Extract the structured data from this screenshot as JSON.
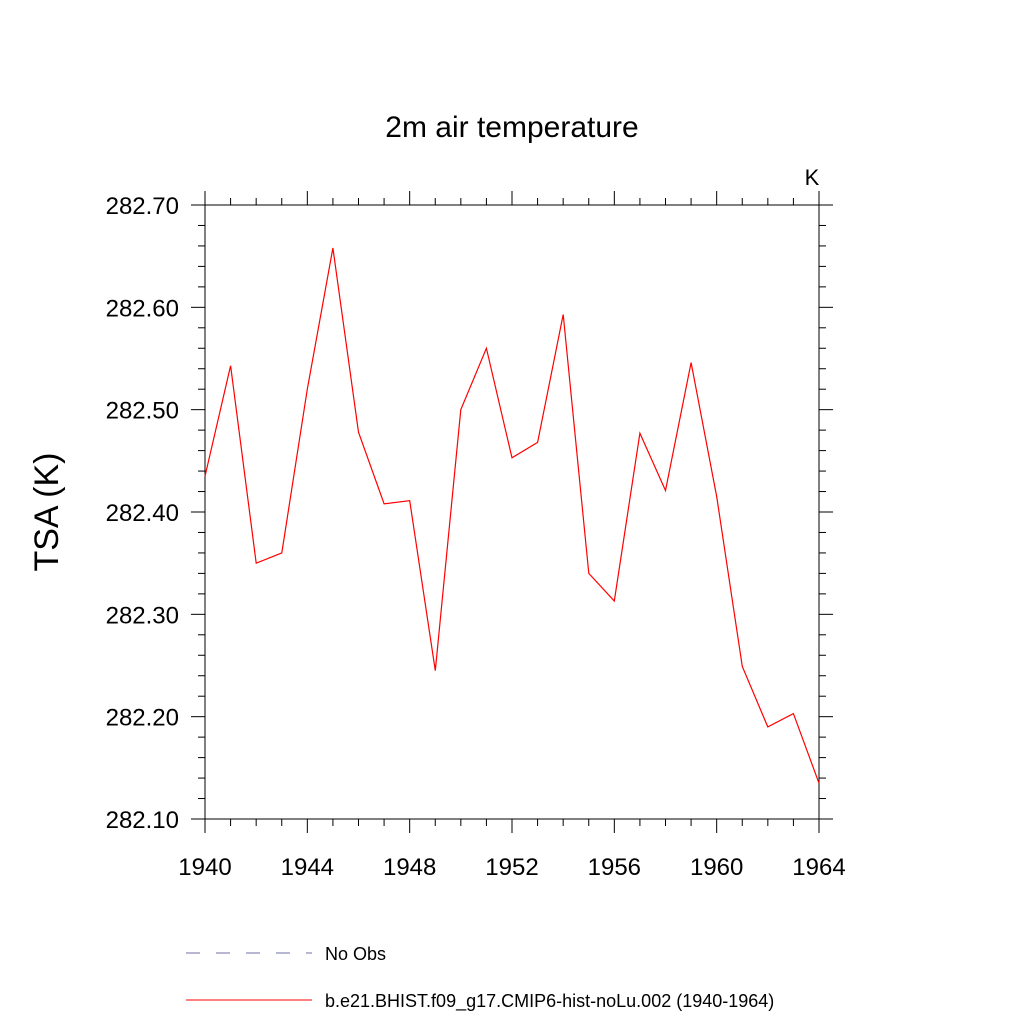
{
  "chart_data": {
    "type": "line",
    "title": "2m air temperature",
    "units_label": "K",
    "xlabel": "",
    "ylabel": "TSA  (K)",
    "xlim": [
      1940,
      1964
    ],
    "ylim": [
      282.1,
      282.7
    ],
    "x_ticks": [
      1940,
      1944,
      1948,
      1952,
      1956,
      1960,
      1964
    ],
    "x_tick_labels": [
      "1940",
      "1944",
      "1948",
      "1952",
      "1956",
      "1960",
      "1964"
    ],
    "y_ticks": [
      282.1,
      282.2,
      282.3,
      282.4,
      282.5,
      282.6,
      282.7
    ],
    "y_tick_labels": [
      "282.10",
      "282.20",
      "282.30",
      "282.40",
      "282.50",
      "282.60",
      "282.70"
    ],
    "grid": false,
    "legend_position": "bottom",
    "series": [
      {
        "name": "b.e21.BHIST.f09_g17.CMIP6-hist-noLu.002 (1940-1964)",
        "color": "#ff0000",
        "style": "solid",
        "x": [
          1940,
          1941,
          1942,
          1943,
          1944,
          1945,
          1946,
          1947,
          1948,
          1949,
          1950,
          1951,
          1952,
          1953,
          1954,
          1955,
          1956,
          1957,
          1958,
          1959,
          1960,
          1961,
          1962,
          1963,
          1964
        ],
        "y": [
          282.435,
          282.543,
          282.35,
          282.36,
          282.52,
          282.658,
          282.478,
          282.408,
          282.411,
          282.245,
          282.5,
          282.56,
          282.453,
          282.468,
          282.593,
          282.34,
          282.313,
          282.477,
          282.421,
          282.546,
          282.415,
          282.249,
          282.19,
          282.203,
          282.135
        ]
      }
    ],
    "legend": [
      {
        "label": "No Obs",
        "color": "#6f6fa8",
        "style": "dashed"
      },
      {
        "label": "b.e21.BHIST.f09_g17.CMIP6-hist-noLu.002 (1940-1964)",
        "color": "#ff0000",
        "style": "solid"
      }
    ]
  }
}
